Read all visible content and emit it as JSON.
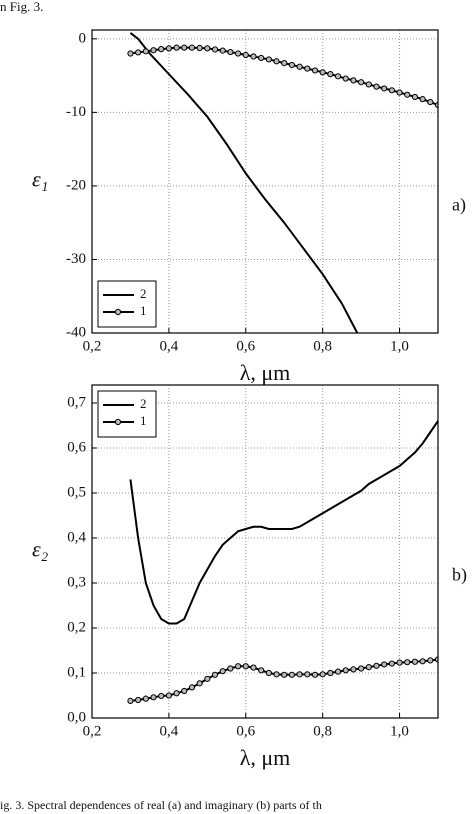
{
  "top_text": "n Fig. 3.",
  "bottom_text": "ig. 3. Spectral dependences of real (a) and imaginary (b) parts of th",
  "chart_data": [
    {
      "type": "line",
      "panel_label": "a)",
      "y_label": "ε₁",
      "x_label": "λ, μm",
      "xlim": [
        0.2,
        1.1
      ],
      "ylim": [
        -40,
        1.2
      ],
      "xticks": [
        {
          "value": 0.2,
          "label": "0,2"
        },
        {
          "value": 0.4,
          "label": "0,4"
        },
        {
          "value": 0.6,
          "label": "0,6"
        },
        {
          "value": 0.8,
          "label": "0,8"
        },
        {
          "value": 1.0,
          "label": "1,0"
        }
      ],
      "yticks": [
        0,
        -10,
        -20,
        -30,
        -40
      ],
      "grid": true,
      "legend": "bottom-left",
      "series": [
        {
          "name": "2",
          "color": "#000000",
          "markers": false,
          "x": [
            0.3,
            0.32,
            0.35,
            0.4,
            0.45,
            0.5,
            0.55,
            0.6,
            0.65,
            0.7,
            0.75,
            0.8,
            0.85,
            0.89
          ],
          "values": [
            0.8,
            0,
            -2,
            -4.8,
            -7.6,
            -10.6,
            -14.3,
            -18.3,
            -21.8,
            -25,
            -28.5,
            -32,
            -36,
            -40
          ]
        },
        {
          "name": "1",
          "color": "#000000",
          "markers": true,
          "x": [
            0.3,
            0.32,
            0.34,
            0.36,
            0.38,
            0.4,
            0.42,
            0.44,
            0.46,
            0.48,
            0.5,
            0.52,
            0.54,
            0.56,
            0.58,
            0.6,
            0.62,
            0.64,
            0.66,
            0.68,
            0.7,
            0.72,
            0.74,
            0.76,
            0.78,
            0.8,
            0.82,
            0.84,
            0.86,
            0.88,
            0.9,
            0.92,
            0.94,
            0.96,
            0.98,
            1.0,
            1.02,
            1.04,
            1.06,
            1.08,
            1.1
          ],
          "values": [
            -2.0,
            -1.85,
            -1.7,
            -1.55,
            -1.4,
            -1.3,
            -1.2,
            -1.2,
            -1.2,
            -1.25,
            -1.3,
            -1.45,
            -1.6,
            -1.8,
            -2.0,
            -2.2,
            -2.4,
            -2.6,
            -2.8,
            -3.05,
            -3.3,
            -3.55,
            -3.8,
            -4.05,
            -4.3,
            -4.55,
            -4.8,
            -5.1,
            -5.4,
            -5.65,
            -5.9,
            -6.2,
            -6.5,
            -6.75,
            -7.0,
            -7.3,
            -7.6,
            -7.9,
            -8.2,
            -8.6,
            -9.0
          ]
        }
      ]
    },
    {
      "type": "line",
      "panel_label": "b)",
      "y_label": "ε₂",
      "x_label": "λ, μm",
      "xlim": [
        0.2,
        1.1
      ],
      "ylim": [
        0,
        0.74
      ],
      "xticks": [
        {
          "value": 0.2,
          "label": "0,2"
        },
        {
          "value": 0.4,
          "label": "0,4"
        },
        {
          "value": 0.6,
          "label": "0,6"
        },
        {
          "value": 0.8,
          "label": "0,8"
        },
        {
          "value": 1.0,
          "label": "1,0"
        }
      ],
      "yticks": [
        {
          "value": 0,
          "label": "0,0"
        },
        {
          "value": 0.1,
          "label": "0,1"
        },
        {
          "value": 0.2,
          "label": "0,2"
        },
        {
          "value": 0.3,
          "label": "0,3"
        },
        {
          "value": 0.4,
          "label": "0,4"
        },
        {
          "value": 0.5,
          "label": "0,5"
        },
        {
          "value": 0.6,
          "label": "0,6"
        },
        {
          "value": 0.7,
          "label": "0,7"
        }
      ],
      "grid": true,
      "legend": "top-left",
      "series": [
        {
          "name": "2",
          "color": "#000000",
          "markers": false,
          "x": [
            0.3,
            0.32,
            0.34,
            0.36,
            0.38,
            0.4,
            0.42,
            0.44,
            0.46,
            0.48,
            0.5,
            0.52,
            0.54,
            0.56,
            0.58,
            0.6,
            0.62,
            0.64,
            0.66,
            0.68,
            0.7,
            0.72,
            0.74,
            0.76,
            0.78,
            0.8,
            0.82,
            0.84,
            0.86,
            0.88,
            0.9,
            0.92,
            0.94,
            0.96,
            0.98,
            1.0,
            1.02,
            1.04,
            1.06,
            1.08,
            1.1
          ],
          "values": [
            0.53,
            0.4,
            0.3,
            0.25,
            0.22,
            0.21,
            0.21,
            0.22,
            0.26,
            0.3,
            0.33,
            0.36,
            0.385,
            0.4,
            0.415,
            0.42,
            0.425,
            0.425,
            0.42,
            0.42,
            0.42,
            0.42,
            0.425,
            0.435,
            0.445,
            0.455,
            0.465,
            0.475,
            0.485,
            0.495,
            0.505,
            0.52,
            0.53,
            0.54,
            0.55,
            0.56,
            0.575,
            0.59,
            0.61,
            0.635,
            0.66
          ]
        },
        {
          "name": "1",
          "color": "#000000",
          "markers": true,
          "x": [
            0.3,
            0.32,
            0.34,
            0.36,
            0.38,
            0.4,
            0.42,
            0.44,
            0.46,
            0.48,
            0.5,
            0.52,
            0.54,
            0.56,
            0.58,
            0.6,
            0.62,
            0.64,
            0.66,
            0.68,
            0.7,
            0.72,
            0.74,
            0.76,
            0.78,
            0.8,
            0.82,
            0.84,
            0.86,
            0.88,
            0.9,
            0.92,
            0.94,
            0.96,
            0.98,
            1.0,
            1.02,
            1.04,
            1.06,
            1.08,
            1.1
          ],
          "values": [
            0.038,
            0.04,
            0.043,
            0.046,
            0.049,
            0.05,
            0.055,
            0.06,
            0.068,
            0.077,
            0.087,
            0.096,
            0.104,
            0.11,
            0.115,
            0.115,
            0.112,
            0.106,
            0.1,
            0.097,
            0.096,
            0.096,
            0.097,
            0.097,
            0.096,
            0.097,
            0.1,
            0.103,
            0.106,
            0.108,
            0.11,
            0.113,
            0.116,
            0.119,
            0.121,
            0.123,
            0.124,
            0.125,
            0.126,
            0.128,
            0.13
          ]
        }
      ]
    }
  ]
}
